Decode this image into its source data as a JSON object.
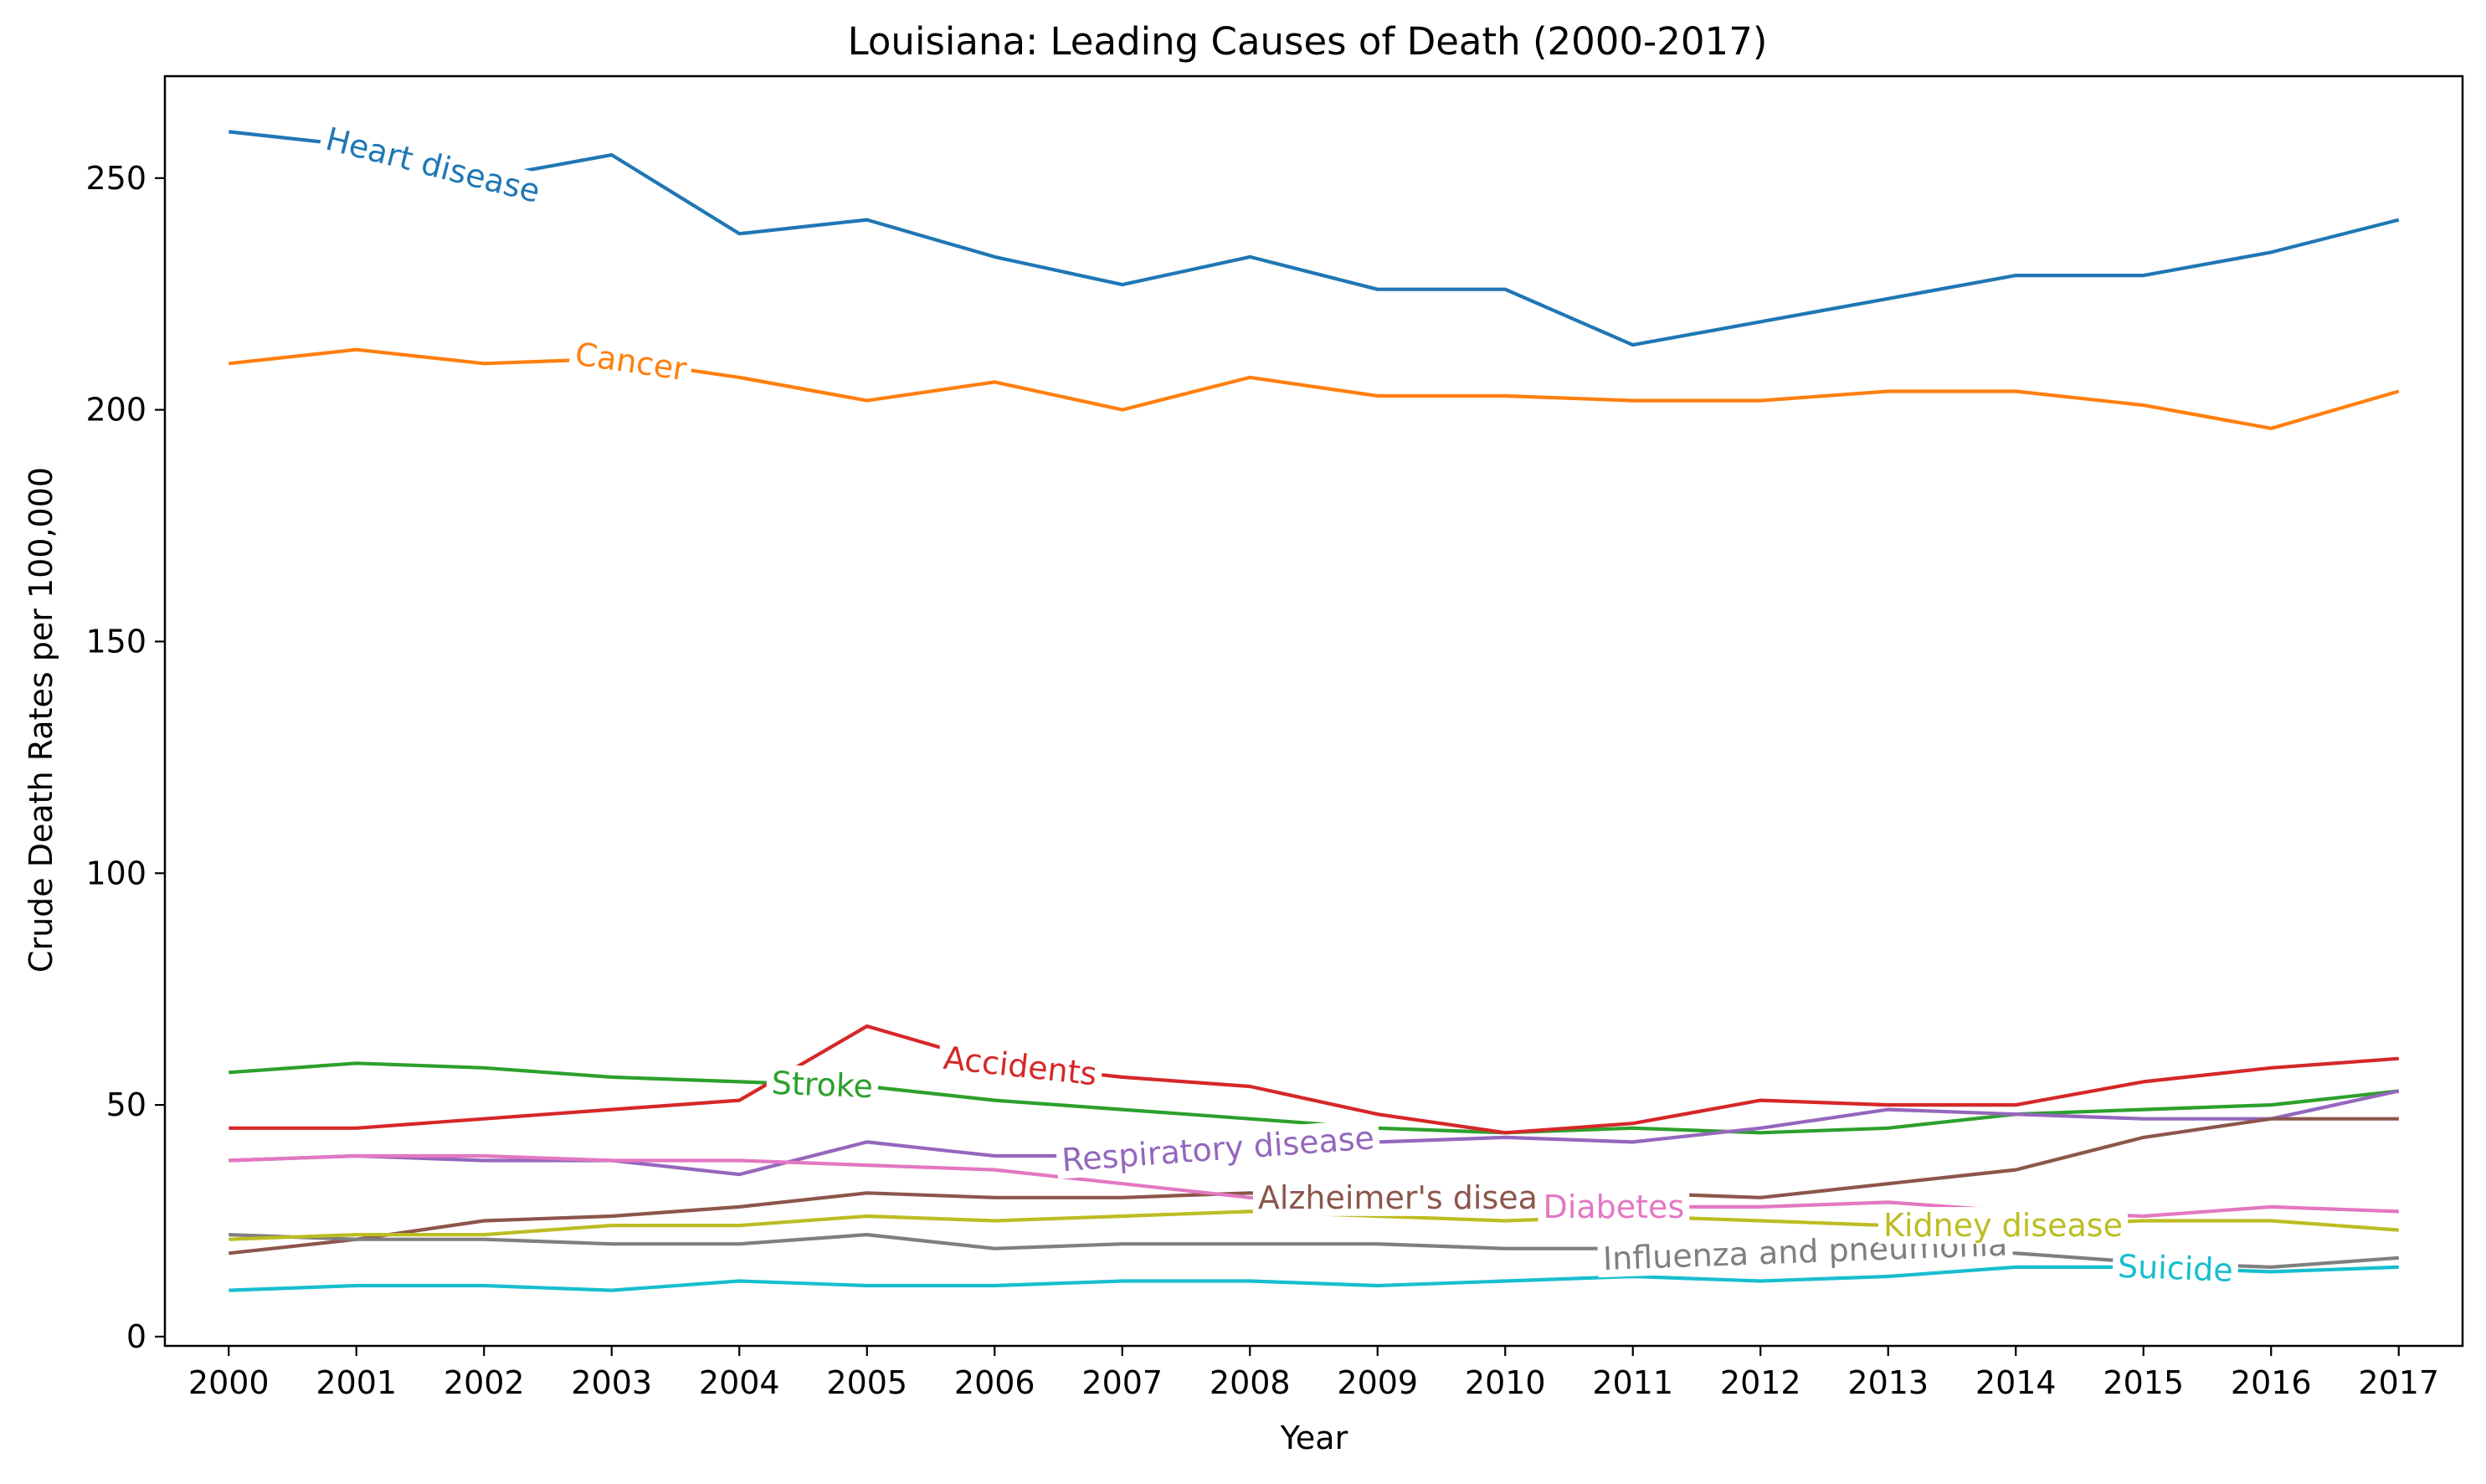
{
  "chart_data": {
    "type": "line",
    "title": "Louisiana: Leading Causes of Death (2000-2017)",
    "xlabel": "Year",
    "ylabel": "Crude Death Rates per 100,000",
    "x": [
      2000,
      2001,
      2002,
      2003,
      2004,
      2005,
      2006,
      2007,
      2008,
      2009,
      2010,
      2011,
      2012,
      2013,
      2014,
      2015,
      2016,
      2017
    ],
    "x_tick_labels": [
      "2000",
      "2001",
      "2002",
      "2003",
      "2004",
      "2005",
      "2006",
      "2007",
      "2008",
      "2009",
      "2010",
      "2011",
      "2012",
      "2013",
      "2014",
      "2015",
      "2016",
      "2017"
    ],
    "ylim": [
      -2,
      272
    ],
    "yticks": [
      0,
      50,
      100,
      150,
      200,
      250
    ],
    "y_tick_labels": [
      "0",
      "50",
      "100",
      "150",
      "200",
      "250"
    ],
    "grid": false,
    "legend": "inline labels on lines",
    "series": [
      {
        "name": "Heart disease",
        "color": "#1f77b4",
        "label_x": 2001.6,
        "values": [
          260,
          257,
          250,
          255,
          238,
          241,
          233,
          227,
          233,
          226,
          226,
          214,
          219,
          224,
          229,
          229,
          234,
          241
        ]
      },
      {
        "name": "Cancer",
        "color": "#ff7f0e",
        "label_x": 2003.15,
        "values": [
          210,
          213,
          210,
          211,
          207,
          202,
          206,
          200,
          207,
          203,
          203,
          202,
          202,
          204,
          204,
          201,
          196,
          204
        ]
      },
      {
        "name": "Stroke",
        "color": "#2ca02c",
        "label_x": 2004.65,
        "values": [
          57,
          59,
          58,
          56,
          55,
          54,
          51,
          49,
          47,
          45,
          44,
          45,
          44,
          45,
          48,
          49,
          50,
          53
        ]
      },
      {
        "name": "Accidents",
        "color": "#d62728",
        "label_x": 2006.2,
        "values": [
          45,
          45,
          47,
          49,
          51,
          67,
          59,
          56,
          54,
          48,
          44,
          46,
          51,
          50,
          50,
          55,
          58,
          60
        ]
      },
      {
        "name": "Respiratory disease",
        "color": "#9467bd",
        "label_x": 2007.75,
        "values": [
          38,
          39,
          38,
          38,
          35,
          42,
          39,
          39,
          41,
          42,
          43,
          42,
          45,
          49,
          48,
          47,
          47,
          53
        ]
      },
      {
        "name": "Alzheimer's disease",
        "color": "#8c564b",
        "label_x": 2009.3,
        "values": [
          18,
          21,
          25,
          26,
          28,
          31,
          30,
          30,
          31,
          30,
          30,
          31,
          30,
          33,
          36,
          43,
          47,
          47
        ]
      },
      {
        "name": "Diabetes",
        "color": "#e377c2",
        "label_x": 2010.85,
        "values": [
          38,
          39,
          39,
          38,
          38,
          37,
          36,
          33,
          30,
          28,
          28,
          28,
          28,
          29,
          27,
          26,
          28,
          27
        ]
      },
      {
        "name": "Influenza and pneumonia",
        "color": "#7f7f7f",
        "label_x": 2012.35,
        "values": [
          22,
          21,
          21,
          20,
          20,
          22,
          19,
          20,
          20,
          20,
          19,
          19,
          18,
          19,
          18,
          16,
          15,
          17
        ]
      },
      {
        "name": "Kidney disease",
        "color": "#bcbd22",
        "label_x": 2013.9,
        "values": [
          21,
          22,
          22,
          24,
          24,
          26,
          25,
          26,
          27,
          26,
          25,
          26,
          25,
          24,
          24,
          25,
          25,
          23
        ]
      },
      {
        "name": "Suicide",
        "color": "#17becf",
        "label_x": 2015.25,
        "values": [
          10,
          11,
          11,
          10,
          12,
          11,
          11,
          12,
          12,
          11,
          12,
          13,
          12,
          13,
          15,
          15,
          14,
          15
        ]
      }
    ]
  }
}
